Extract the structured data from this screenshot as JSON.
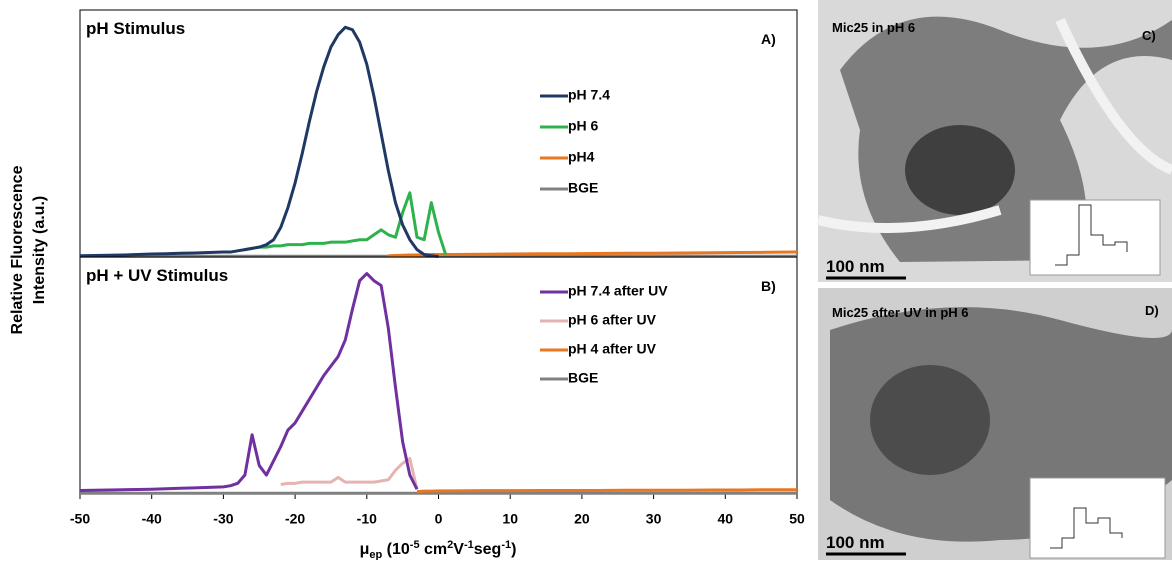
{
  "figure": {
    "ylabel": [
      "Relative Fluorescence",
      "Intensity (a.u.)"
    ],
    "xlabel": [
      "μ",
      "ep",
      " (10",
      "-5",
      " cm",
      "2",
      "V",
      "-1",
      "seg",
      "-1",
      ")"
    ]
  },
  "chart_data": [
    {
      "type": "line",
      "title": "pH Stimulus",
      "panel": "A)",
      "x": [
        -50,
        -48,
        -46,
        -44,
        -42,
        -40,
        -38,
        -36,
        -34,
        -32,
        -30,
        -29,
        -28,
        -27,
        -26,
        -25,
        -24,
        -23,
        -22,
        -21,
        -20,
        -19,
        -18,
        -17,
        -16,
        -15,
        -14,
        -13,
        -12,
        -11,
        -10,
        -9,
        -8,
        -7,
        -6,
        -5,
        -4,
        -3,
        -2,
        -1,
        0,
        1,
        2,
        6,
        10,
        14,
        18,
        22,
        26,
        30,
        34,
        38,
        42,
        46,
        50
      ],
      "xlim": [
        -50,
        50
      ],
      "ylim": [
        0,
        100
      ],
      "series": [
        {
          "name": "pH 7.4",
          "color": "#1f3864",
          "values": [
            0.5,
            0.6,
            0.7,
            0.8,
            1,
            1.2,
            1.3,
            1.5,
            1.6,
            1.8,
            2,
            2,
            2.5,
            3,
            3.5,
            4,
            5,
            7,
            12,
            20,
            30,
            42,
            55,
            67,
            77,
            85,
            90,
            93,
            92,
            87,
            78,
            65,
            50,
            35,
            22,
            13,
            7,
            3,
            1,
            0.5,
            0.2,
            null,
            null,
            null,
            null,
            null,
            null,
            null,
            null,
            null,
            null,
            null,
            null,
            null,
            null
          ]
        },
        {
          "name": "pH 6",
          "color": "#2db24e",
          "values": [
            null,
            null,
            null,
            null,
            null,
            null,
            null,
            null,
            null,
            null,
            null,
            null,
            null,
            3,
            3.5,
            4,
            4,
            4.5,
            4.5,
            5,
            5,
            5,
            5.5,
            5.5,
            5.5,
            6,
            6,
            6,
            6.5,
            7,
            7,
            9,
            11,
            9,
            8,
            18,
            26,
            8,
            7,
            22,
            10,
            1,
            null,
            null,
            null,
            null,
            null,
            null,
            null,
            null,
            null,
            null,
            null,
            null,
            null
          ]
        },
        {
          "name": "pH4",
          "color": "#e87722",
          "values": [
            null,
            null,
            null,
            null,
            null,
            null,
            null,
            null,
            null,
            null,
            null,
            null,
            null,
            null,
            null,
            null,
            null,
            null,
            null,
            null,
            null,
            null,
            null,
            null,
            null,
            null,
            null,
            null,
            null,
            null,
            null,
            null,
            null,
            0.5,
            0.6,
            0.7,
            0.8,
            0.8,
            0.9,
            1,
            1,
            1,
            1,
            1.1,
            1.2,
            1.3,
            1.3,
            1.4,
            1.5,
            1.5,
            1.6,
            1.7,
            1.8,
            1.9,
            2
          ]
        },
        {
          "name": "BGE",
          "color": "#808080",
          "values": [
            0.3,
            0.3,
            0.3,
            0.3,
            0.3,
            0.3,
            0.3,
            0.3,
            0.3,
            0.3,
            0.3,
            0.3,
            0.3,
            0.3,
            0.3,
            0.3,
            0.3,
            0.3,
            0.3,
            0.3,
            0.3,
            0.3,
            0.3,
            0.3,
            0.3,
            0.3,
            0.3,
            0.3,
            0.3,
            0.3,
            0.3,
            0.3,
            0.3,
            0.3,
            0.3,
            0.3,
            0.3,
            0.3,
            0.3,
            0.3,
            0.3,
            0.3,
            0.3,
            0.3,
            0.3,
            0.3,
            0.3,
            0.3,
            0.3,
            0.3,
            0.3,
            0.3,
            0.3,
            0.3,
            0.3
          ]
        }
      ]
    },
    {
      "type": "line",
      "title": "pH + UV Stimulus",
      "panel": "B)",
      "x": [
        -50,
        -48,
        -46,
        -44,
        -42,
        -40,
        -38,
        -36,
        -34,
        -32,
        -30,
        -29,
        -28,
        -27,
        -26,
        -25,
        -24,
        -23,
        -22,
        -21,
        -20,
        -19,
        -18,
        -17,
        -16,
        -15,
        -14,
        -13,
        -12,
        -11,
        -10,
        -9,
        -8,
        -7,
        -6,
        -5,
        -4,
        -3,
        -2,
        -1,
        0,
        1,
        2,
        6,
        10,
        14,
        18,
        22,
        26,
        30,
        34,
        38,
        42,
        46,
        50
      ],
      "xlim": [
        -50,
        50
      ],
      "ylim": [
        0,
        100
      ],
      "xticks": [
        -50,
        -40,
        -30,
        -20,
        -10,
        0,
        10,
        20,
        30,
        40,
        50
      ],
      "series": [
        {
          "name": "pH 7.4 after UV",
          "color": "#7030a0",
          "values": [
            1.5,
            1.6,
            1.7,
            1.8,
            1.9,
            2,
            2.2,
            2.4,
            2.6,
            2.8,
            3,
            3.5,
            4.5,
            8,
            25,
            12,
            8,
            14,
            20,
            27,
            30,
            35,
            40,
            45,
            50,
            54,
            58,
            65,
            78,
            90,
            93,
            90,
            88,
            70,
            45,
            22,
            8,
            2,
            null,
            null,
            null,
            null,
            null,
            null,
            null,
            null,
            null,
            null,
            null,
            null,
            null,
            null,
            null,
            null,
            null
          ]
        },
        {
          "name": "pH 6 after UV",
          "color": "#e6b3b3",
          "values": [
            null,
            null,
            null,
            null,
            null,
            null,
            null,
            null,
            null,
            null,
            null,
            null,
            null,
            null,
            null,
            null,
            null,
            null,
            4,
            4.5,
            4.5,
            5,
            5,
            5,
            5,
            5,
            7,
            5,
            5,
            5,
            5,
            5,
            5.5,
            6,
            10,
            13,
            15,
            2,
            null,
            null,
            null,
            null,
            null,
            null,
            null,
            null,
            null,
            null,
            null,
            null,
            null,
            null,
            null,
            null,
            null
          ]
        },
        {
          "name": "pH 4 after UV",
          "color": "#e87722",
          "values": [
            null,
            null,
            null,
            null,
            null,
            null,
            null,
            null,
            null,
            null,
            null,
            null,
            null,
            null,
            null,
            null,
            null,
            null,
            null,
            null,
            null,
            null,
            null,
            null,
            null,
            null,
            null,
            null,
            null,
            null,
            null,
            null,
            null,
            null,
            null,
            null,
            null,
            1,
            1.2,
            1.2,
            1.3,
            1.3,
            1.3,
            1.4,
            1.4,
            1.5,
            1.5,
            1.5,
            1.6,
            1.6,
            1.6,
            1.7,
            1.7,
            1.8,
            1.8
          ]
        },
        {
          "name": "BGE",
          "color": "#808080",
          "values": [
            0.3,
            0.3,
            0.3,
            0.3,
            0.3,
            0.3,
            0.3,
            0.3,
            0.3,
            0.3,
            0.3,
            0.3,
            0.3,
            0.3,
            0.3,
            0.3,
            0.3,
            0.3,
            0.3,
            0.3,
            0.3,
            0.3,
            0.3,
            0.3,
            0.3,
            0.3,
            0.3,
            0.3,
            0.3,
            0.3,
            0.3,
            0.3,
            0.3,
            0.3,
            0.3,
            0.3,
            0.3,
            0.3,
            0.3,
            0.3,
            0.3,
            0.3,
            0.3,
            0.3,
            0.3,
            0.3,
            0.3,
            0.3,
            0.3,
            0.3,
            0.3,
            0.3,
            0.3,
            0.3,
            0.3
          ]
        }
      ]
    }
  ],
  "images": [
    {
      "title": "Mic25 in pH 6",
      "label": "C)",
      "scale": "100 nm"
    },
    {
      "title": "Mic25 after UV in pH 6",
      "label": "D)",
      "scale": "100 nm"
    }
  ]
}
